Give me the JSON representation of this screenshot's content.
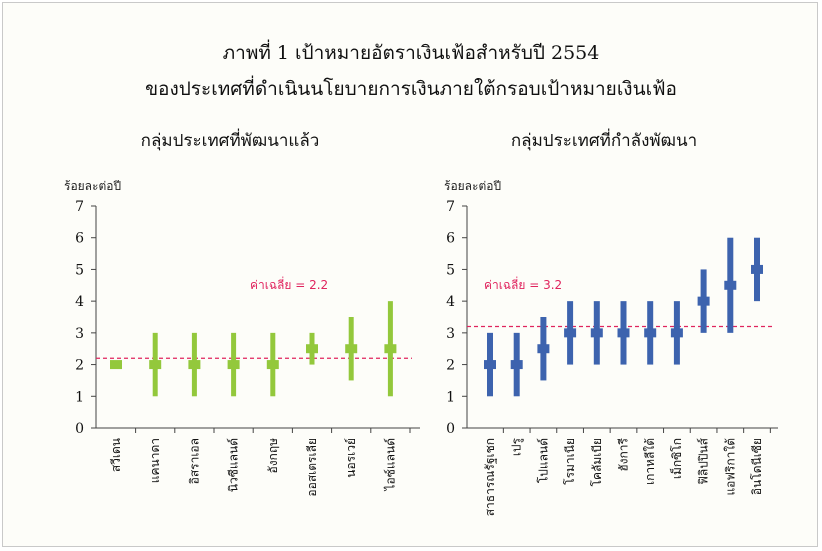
{
  "figure": {
    "title_line1": "ภาพที่ 1  เป้าหมายอัตราเงินเฟ้อสำหรับปี 2554",
    "title_line2": "ของประเทศที่ดำเนินนโยบายการเงินภายใต้กรอบเป้าหมายเงินเฟ้อ"
  },
  "chart_data": [
    {
      "type": "range",
      "title": "กลุ่มประเทศที่พัฒนาแล้ว",
      "ylabel": "ร้อยละต่อปี",
      "ylim": [
        0,
        7
      ],
      "yticks": [
        0,
        1,
        2,
        3,
        4,
        5,
        6,
        7
      ],
      "color": "#93c83c",
      "categories": [
        "สวีเดน",
        "แคนาดา",
        "อิสราเอล",
        "นิวซีแลนด์",
        "อังกฤษ",
        "ออสเตรเลีย",
        "นอรเวย์",
        "ไอซ์แลนด์"
      ],
      "low": [
        2.0,
        1.0,
        1.0,
        1.0,
        1.0,
        2.0,
        1.5,
        1.0
      ],
      "high": [
        2.0,
        3.0,
        3.0,
        3.0,
        3.0,
        3.0,
        3.5,
        4.0
      ],
      "target": [
        2.0,
        2.0,
        2.0,
        2.0,
        2.0,
        2.5,
        2.5,
        2.5
      ],
      "average": {
        "value": 2.2,
        "label": "ค่าเฉลี่ย = 2.2",
        "color": "#e0245e"
      }
    },
    {
      "type": "range",
      "title": "กลุ่มประเทศที่กำลังพัฒนา",
      "ylabel": "ร้อยละต่อปี",
      "ylim": [
        0,
        7
      ],
      "yticks": [
        0,
        1,
        2,
        3,
        4,
        5,
        6,
        7
      ],
      "color": "#3d63ae",
      "categories": [
        "สาธารณรัฐเชก",
        "เปรู",
        "โปแลนด์",
        "โรมาเนีย",
        "โคลัมเบีย",
        "ฮังการี",
        "เกาหลีใต้",
        "เม็กซิโก",
        "ฟิลิปปินส์",
        "แอฟริกาใต้",
        "อินโดนีเซีย"
      ],
      "low": [
        1.0,
        1.0,
        1.5,
        2.0,
        2.0,
        2.0,
        2.0,
        2.0,
        3.0,
        3.0,
        4.0
      ],
      "high": [
        3.0,
        3.0,
        3.5,
        4.0,
        4.0,
        4.0,
        4.0,
        4.0,
        5.0,
        6.0,
        6.0
      ],
      "target": [
        2.0,
        2.0,
        2.5,
        3.0,
        3.0,
        3.0,
        3.0,
        3.0,
        4.0,
        4.5,
        5.0
      ],
      "average": {
        "value": 3.2,
        "label": "ค่าเฉลี่ย = 3.2",
        "color": "#e0245e"
      }
    }
  ]
}
